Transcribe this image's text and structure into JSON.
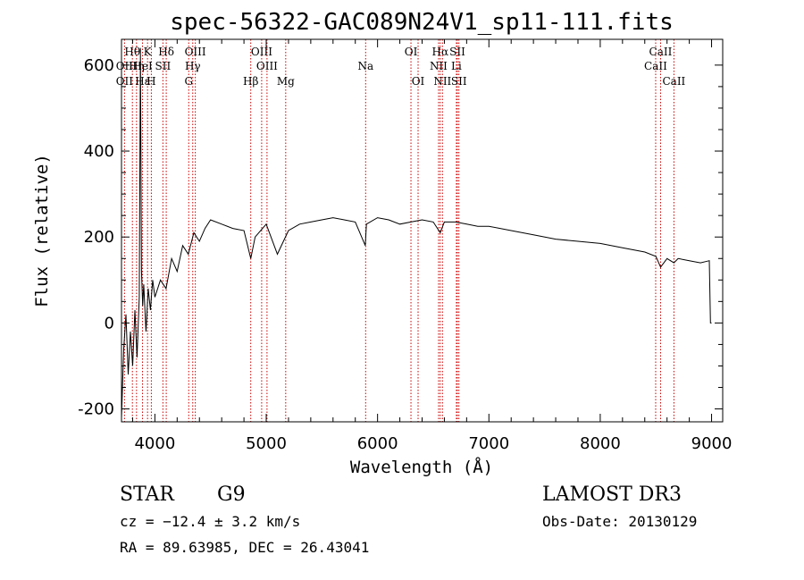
{
  "chart_data": {
    "type": "line",
    "title": "spec-56322-GAC089N24V1_sp11-111.fits",
    "xlabel": "Wavelength (Å)",
    "ylabel": "Flux (relative)",
    "xlim": [
      3700,
      9100
    ],
    "ylim": [
      -230,
      660
    ],
    "x_ticks": [
      4000,
      5000,
      6000,
      7000,
      8000,
      9000
    ],
    "y_ticks": [
      -200,
      0,
      200,
      400,
      600
    ],
    "series": [
      {
        "name": "flux",
        "x": [
          3700,
          3720,
          3740,
          3760,
          3780,
          3800,
          3820,
          3840,
          3860,
          3870,
          3880,
          3890,
          3900,
          3920,
          3940,
          3960,
          3980,
          4000,
          4050,
          4100,
          4150,
          4200,
          4250,
          4300,
          4350,
          4400,
          4450,
          4500,
          4600,
          4700,
          4800,
          4861,
          4900,
          5000,
          5100,
          5200,
          5300,
          5400,
          5500,
          5600,
          5700,
          5800,
          5890,
          5900,
          6000,
          6100,
          6200,
          6300,
          6400,
          6500,
          6563,
          6600,
          6700,
          6800,
          6900,
          7000,
          7200,
          7400,
          7600,
          7800,
          8000,
          8200,
          8400,
          8500,
          8542,
          8600,
          8662,
          8700,
          8800,
          8900,
          8980,
          8990,
          9000
        ],
        "y": [
          -220,
          -60,
          20,
          -120,
          -20,
          -100,
          30,
          -80,
          60,
          640,
          120,
          40,
          90,
          -20,
          80,
          30,
          100,
          60,
          100,
          80,
          150,
          120,
          180,
          160,
          210,
          190,
          220,
          240,
          230,
          220,
          215,
          150,
          200,
          230,
          160,
          215,
          230,
          235,
          240,
          245,
          240,
          235,
          180,
          230,
          245,
          240,
          230,
          235,
          240,
          235,
          210,
          235,
          235,
          230,
          225,
          225,
          215,
          205,
          195,
          190,
          185,
          175,
          165,
          155,
          130,
          150,
          140,
          150,
          145,
          140,
          145,
          0,
          0
        ]
      }
    ],
    "lines_top": [
      {
        "label": "Hθ",
        "wl": 3798
      },
      {
        "label": "K",
        "wl": 3934
      },
      {
        "label": "Hδ",
        "wl": 4102
      },
      {
        "label": "OIII",
        "wl": 4363
      },
      {
        "label": "OIII",
        "wl": 4959
      },
      {
        "label": "OI",
        "wl": 6300
      },
      {
        "label": "Hα",
        "wl": 6563
      },
      {
        "label": "SII",
        "wl": 6717
      },
      {
        "label": "CaII",
        "wl": 8542
      }
    ],
    "lines_mid": [
      {
        "label": "OII",
        "wl": 3727
      },
      {
        "label": "Hη",
        "wl": 3835
      },
      {
        "label": "HeI",
        "wl": 3889
      },
      {
        "label": "SII",
        "wl": 4072
      },
      {
        "label": "Hγ",
        "wl": 4340
      },
      {
        "label": "OIII",
        "wl": 5007
      },
      {
        "label": "Na",
        "wl": 5893
      },
      {
        "label": "NII",
        "wl": 6548
      },
      {
        "label": "Li",
        "wl": 6708
      },
      {
        "label": "CaII",
        "wl": 8498
      }
    ],
    "lines_low": [
      {
        "label": "OII",
        "wl": 3727
      },
      {
        "label": "Hε",
        "wl": 3889
      },
      {
        "label": "H",
        "wl": 3968
      },
      {
        "label": "G",
        "wl": 4304
      },
      {
        "label": "Hβ",
        "wl": 4861
      },
      {
        "label": "Mg",
        "wl": 5175
      },
      {
        "label": "OI",
        "wl": 6364
      },
      {
        "label": "NII",
        "wl": 6583
      },
      {
        "label": "SII",
        "wl": 6731
      },
      {
        "label": "CaII",
        "wl": 8662
      }
    ]
  },
  "info": {
    "object_class": "STAR",
    "subclass": "G9",
    "survey": "LAMOST DR3",
    "cz": "cz = −12.4 ± 3.2 km/s",
    "obs_date": "Obs-Date: 20130129",
    "coords": "RA =  89.63985, DEC =  26.43041"
  },
  "colors": {
    "spectrum": "#000000",
    "line_marker": "#cc0000",
    "axes": "#000000"
  }
}
